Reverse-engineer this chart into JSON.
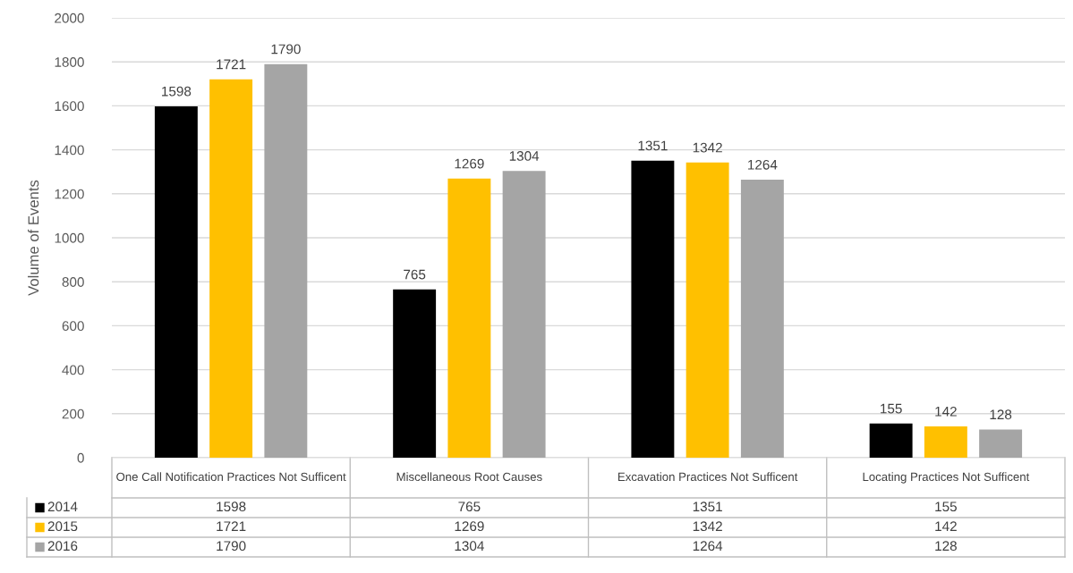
{
  "chart_data": {
    "type": "bar",
    "ylabel": "Volume of Events",
    "categories": [
      "One Call Notification Practices Not Sufficent",
      "Miscellaneous Root Causes",
      "Excavation Practices Not Sufficent",
      "Locating Practices Not Sufficent"
    ],
    "series": [
      {
        "name": "2014",
        "color": "#000000",
        "values": [
          1598,
          765,
          1351,
          155
        ],
        "value_labels": [
          "1598",
          "765",
          "1351",
          "155"
        ]
      },
      {
        "name": "2015",
        "color": "#ffc000",
        "values": [
          1721,
          1269,
          1342,
          142
        ],
        "value_labels": [
          "1721",
          "1269",
          "1342",
          "142"
        ]
      },
      {
        "name": "2016",
        "color": "#a5a5a5",
        "values": [
          1790,
          1304,
          1264,
          128
        ],
        "value_labels": [
          "1790",
          "1304",
          "1264",
          "128"
        ]
      }
    ],
    "ylim": [
      0,
      2000
    ],
    "yticks": [
      0,
      200,
      400,
      600,
      800,
      1000,
      1200,
      1400,
      1600,
      1800,
      2000
    ],
    "grid": "y",
    "legend": "bottom left",
    "annotations": [
      "1598",
      "765",
      "1351",
      "155",
      "1721",
      "1269",
      "1342",
      "142",
      "1790",
      "1304",
      "1264",
      "128"
    ]
  }
}
